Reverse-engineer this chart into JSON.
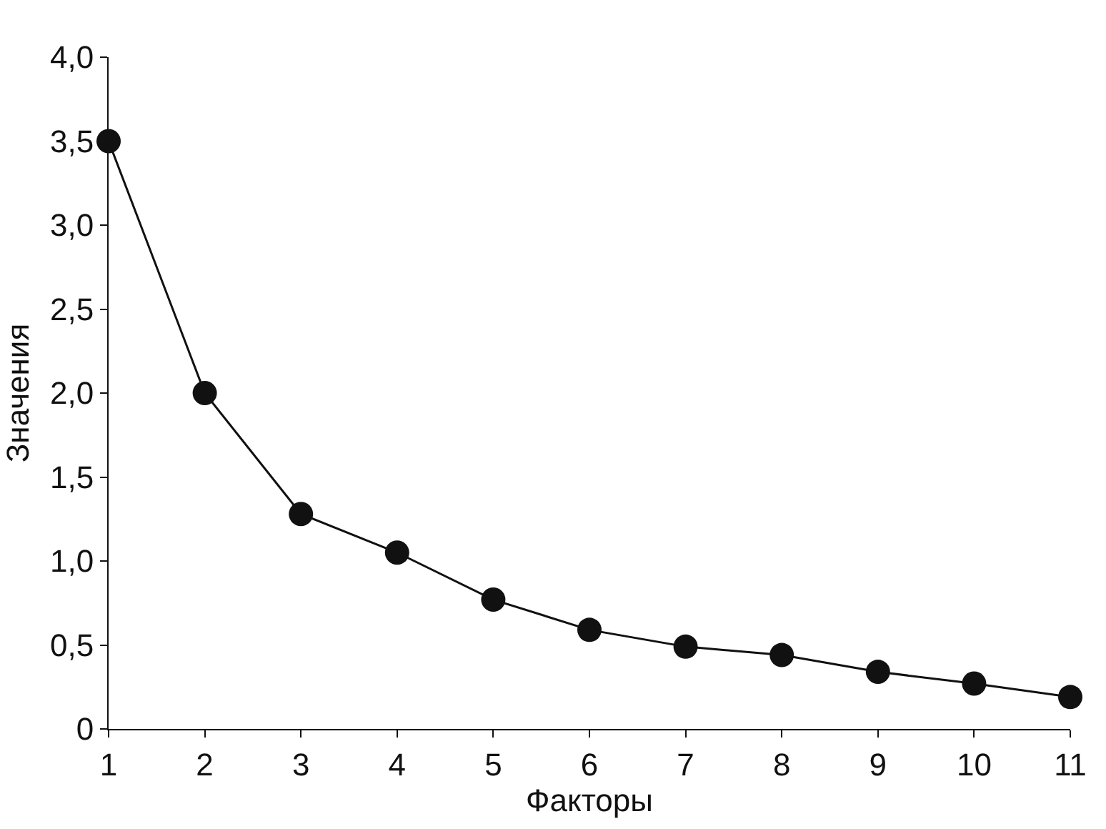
{
  "chart_data": {
    "type": "line",
    "xlabel": "Факторы",
    "ylabel": "Значения",
    "x": [
      1,
      2,
      3,
      4,
      5,
      6,
      7,
      8,
      9,
      10,
      11
    ],
    "series": [
      {
        "color": "#111111",
        "values": [
          3.5,
          2.0,
          1.28,
          1.05,
          0.77,
          0.59,
          0.49,
          0.44,
          0.34,
          0.27,
          0.19
        ]
      }
    ],
    "xlim": [
      1,
      11
    ],
    "xticks": [
      1,
      2,
      3,
      4,
      5,
      6,
      7,
      8,
      9,
      10,
      11
    ],
    "ylim": [
      0,
      4
    ],
    "yticks": [
      {
        "value": 0,
        "label": "0"
      },
      {
        "value": 0.5,
        "label": "0,5"
      },
      {
        "value": 1,
        "label": "1,0"
      },
      {
        "value": 1.5,
        "label": "1,5"
      },
      {
        "value": 2,
        "label": "2,0"
      },
      {
        "value": 2.5,
        "label": "2,5"
      },
      {
        "value": 3,
        "label": "3,0"
      },
      {
        "value": 3.5,
        "label": "3,5"
      },
      {
        "value": 4,
        "label": "4,0"
      }
    ],
    "marker": "circle",
    "line_style": "solid"
  }
}
